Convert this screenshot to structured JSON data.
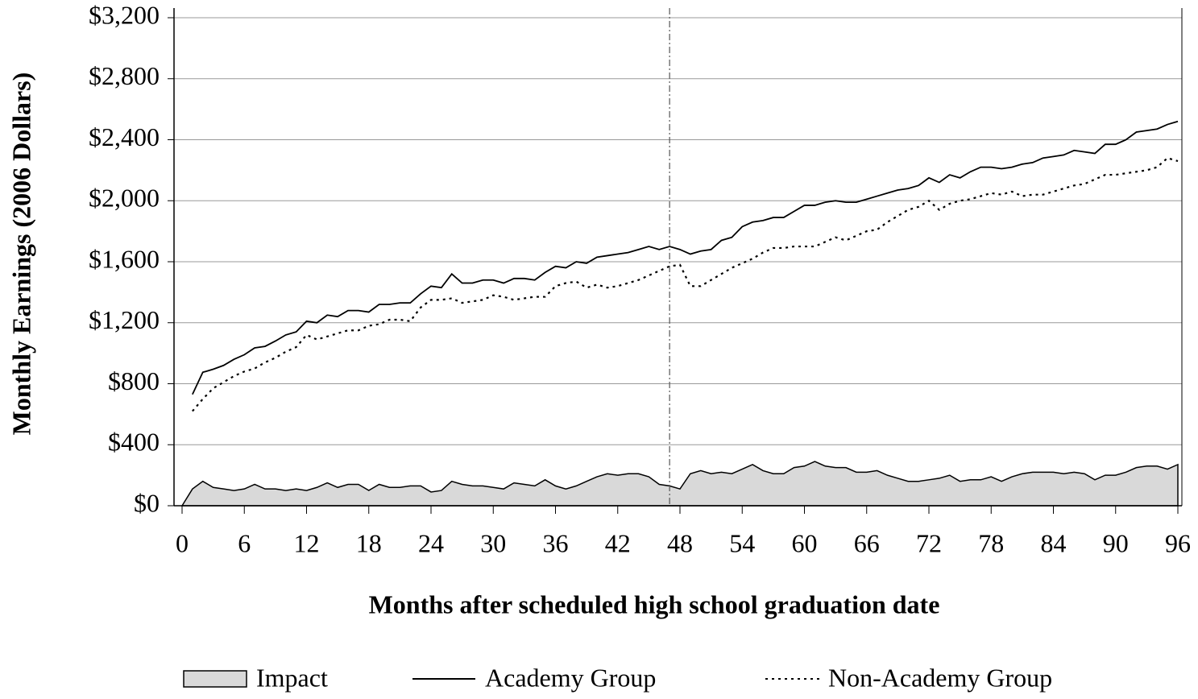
{
  "chart_data": {
    "type": "line",
    "xlabel": "Months after scheduled high school graduation date",
    "ylabel": "Monthly Earnings (2006 Dollars)",
    "x": [
      0,
      1,
      2,
      3,
      4,
      5,
      6,
      7,
      8,
      9,
      10,
      11,
      12,
      13,
      14,
      15,
      16,
      17,
      18,
      19,
      20,
      21,
      22,
      23,
      24,
      25,
      26,
      27,
      28,
      29,
      30,
      31,
      32,
      33,
      34,
      35,
      36,
      37,
      38,
      39,
      40,
      41,
      42,
      43,
      44,
      45,
      46,
      47,
      48,
      49,
      50,
      51,
      52,
      53,
      54,
      55,
      56,
      57,
      58,
      59,
      60,
      61,
      62,
      63,
      64,
      65,
      66,
      67,
      68,
      69,
      70,
      71,
      72,
      73,
      74,
      75,
      76,
      77,
      78,
      79,
      80,
      81,
      82,
      83,
      84,
      85,
      86,
      87,
      88,
      89,
      90,
      91,
      92,
      93,
      94,
      95,
      96
    ],
    "series": [
      {
        "name": "Impact",
        "color": "#d9d9d9",
        "style": "area",
        "values": [
          0,
          110,
          160,
          120,
          110,
          100,
          110,
          140,
          110,
          110,
          100,
          110,
          100,
          120,
          150,
          120,
          140,
          140,
          100,
          140,
          120,
          120,
          130,
          130,
          90,
          100,
          160,
          140,
          130,
          130,
          120,
          110,
          150,
          140,
          130,
          170,
          130,
          110,
          130,
          160,
          190,
          210,
          200,
          210,
          210,
          190,
          140,
          130,
          110,
          210,
          230,
          210,
          220,
          210,
          240,
          270,
          230,
          210,
          210,
          250,
          260,
          290,
          260,
          250,
          250,
          220,
          220,
          230,
          200,
          180,
          160,
          160,
          170,
          180,
          200,
          160,
          170,
          170,
          190,
          160,
          190,
          210,
          220,
          220,
          220,
          210,
          220,
          210,
          170,
          200,
          200,
          220,
          250,
          260,
          260,
          240,
          270
        ]
      },
      {
        "name": "Academy Group",
        "color": "#000000",
        "style": "solid",
        "values": [
          null,
          730,
          875,
          895,
          920,
          960,
          990,
          1035,
          1045,
          1080,
          1120,
          1140,
          1210,
          1200,
          1250,
          1240,
          1280,
          1280,
          1270,
          1320,
          1320,
          1330,
          1330,
          1390,
          1440,
          1430,
          1520,
          1460,
          1460,
          1480,
          1480,
          1460,
          1490,
          1490,
          1480,
          1530,
          1570,
          1560,
          1600,
          1590,
          1630,
          1640,
          1650,
          1660,
          1680,
          1700,
          1680,
          1700,
          1680,
          1650,
          1670,
          1680,
          1740,
          1760,
          1830,
          1860,
          1870,
          1890,
          1890,
          1930,
          1970,
          1970,
          1990,
          2000,
          1990,
          1990,
          2010,
          2030,
          2050,
          2070,
          2080,
          2100,
          2150,
          2120,
          2170,
          2150,
          2190,
          2220,
          2220,
          2210,
          2220,
          2240,
          2250,
          2280,
          2290,
          2300,
          2330,
          2320,
          2310,
          2370,
          2370,
          2400,
          2450,
          2460,
          2470,
          2500,
          2520
        ]
      },
      {
        "name": "Non-Academy Group",
        "color": "#000000",
        "style": "dotted",
        "values": [
          null,
          620,
          700,
          770,
          810,
          850,
          880,
          900,
          940,
          970,
          1010,
          1040,
          1120,
          1090,
          1110,
          1130,
          1150,
          1150,
          1180,
          1190,
          1220,
          1220,
          1210,
          1300,
          1350,
          1350,
          1360,
          1330,
          1340,
          1350,
          1380,
          1370,
          1350,
          1360,
          1370,
          1370,
          1440,
          1460,
          1470,
          1430,
          1450,
          1430,
          1440,
          1460,
          1480,
          1510,
          1540,
          1570,
          1580,
          1440,
          1440,
          1480,
          1520,
          1560,
          1590,
          1620,
          1660,
          1690,
          1690,
          1700,
          1700,
          1700,
          1730,
          1760,
          1740,
          1770,
          1800,
          1810,
          1860,
          1900,
          1940,
          1960,
          2000,
          1940,
          1980,
          2000,
          2010,
          2030,
          2050,
          2040,
          2060,
          2030,
          2040,
          2040,
          2060,
          2080,
          2100,
          2110,
          2140,
          2170,
          2170,
          2180,
          2190,
          2200,
          2220,
          2280,
          2260
        ]
      }
    ],
    "vline": 47,
    "xlim": [
      0,
      96
    ],
    "xticks": [
      0,
      6,
      12,
      18,
      24,
      30,
      36,
      42,
      48,
      54,
      60,
      66,
      72,
      78,
      84,
      90,
      96
    ],
    "ylim": [
      0,
      3200
    ],
    "yticks": [
      {
        "value": 0,
        "label": "$0"
      },
      {
        "value": 400,
        "label": "$400"
      },
      {
        "value": 800,
        "label": "$800"
      },
      {
        "value": 1200,
        "label": "$1,200"
      },
      {
        "value": 1600,
        "label": "$1,600"
      },
      {
        "value": 2000,
        "label": "$2,000"
      },
      {
        "value": 2400,
        "label": "$2,400"
      },
      {
        "value": 2800,
        "label": "$2,800"
      },
      {
        "value": 3200,
        "label": "$3,200"
      }
    ],
    "grid": true,
    "legend": "bottom"
  }
}
